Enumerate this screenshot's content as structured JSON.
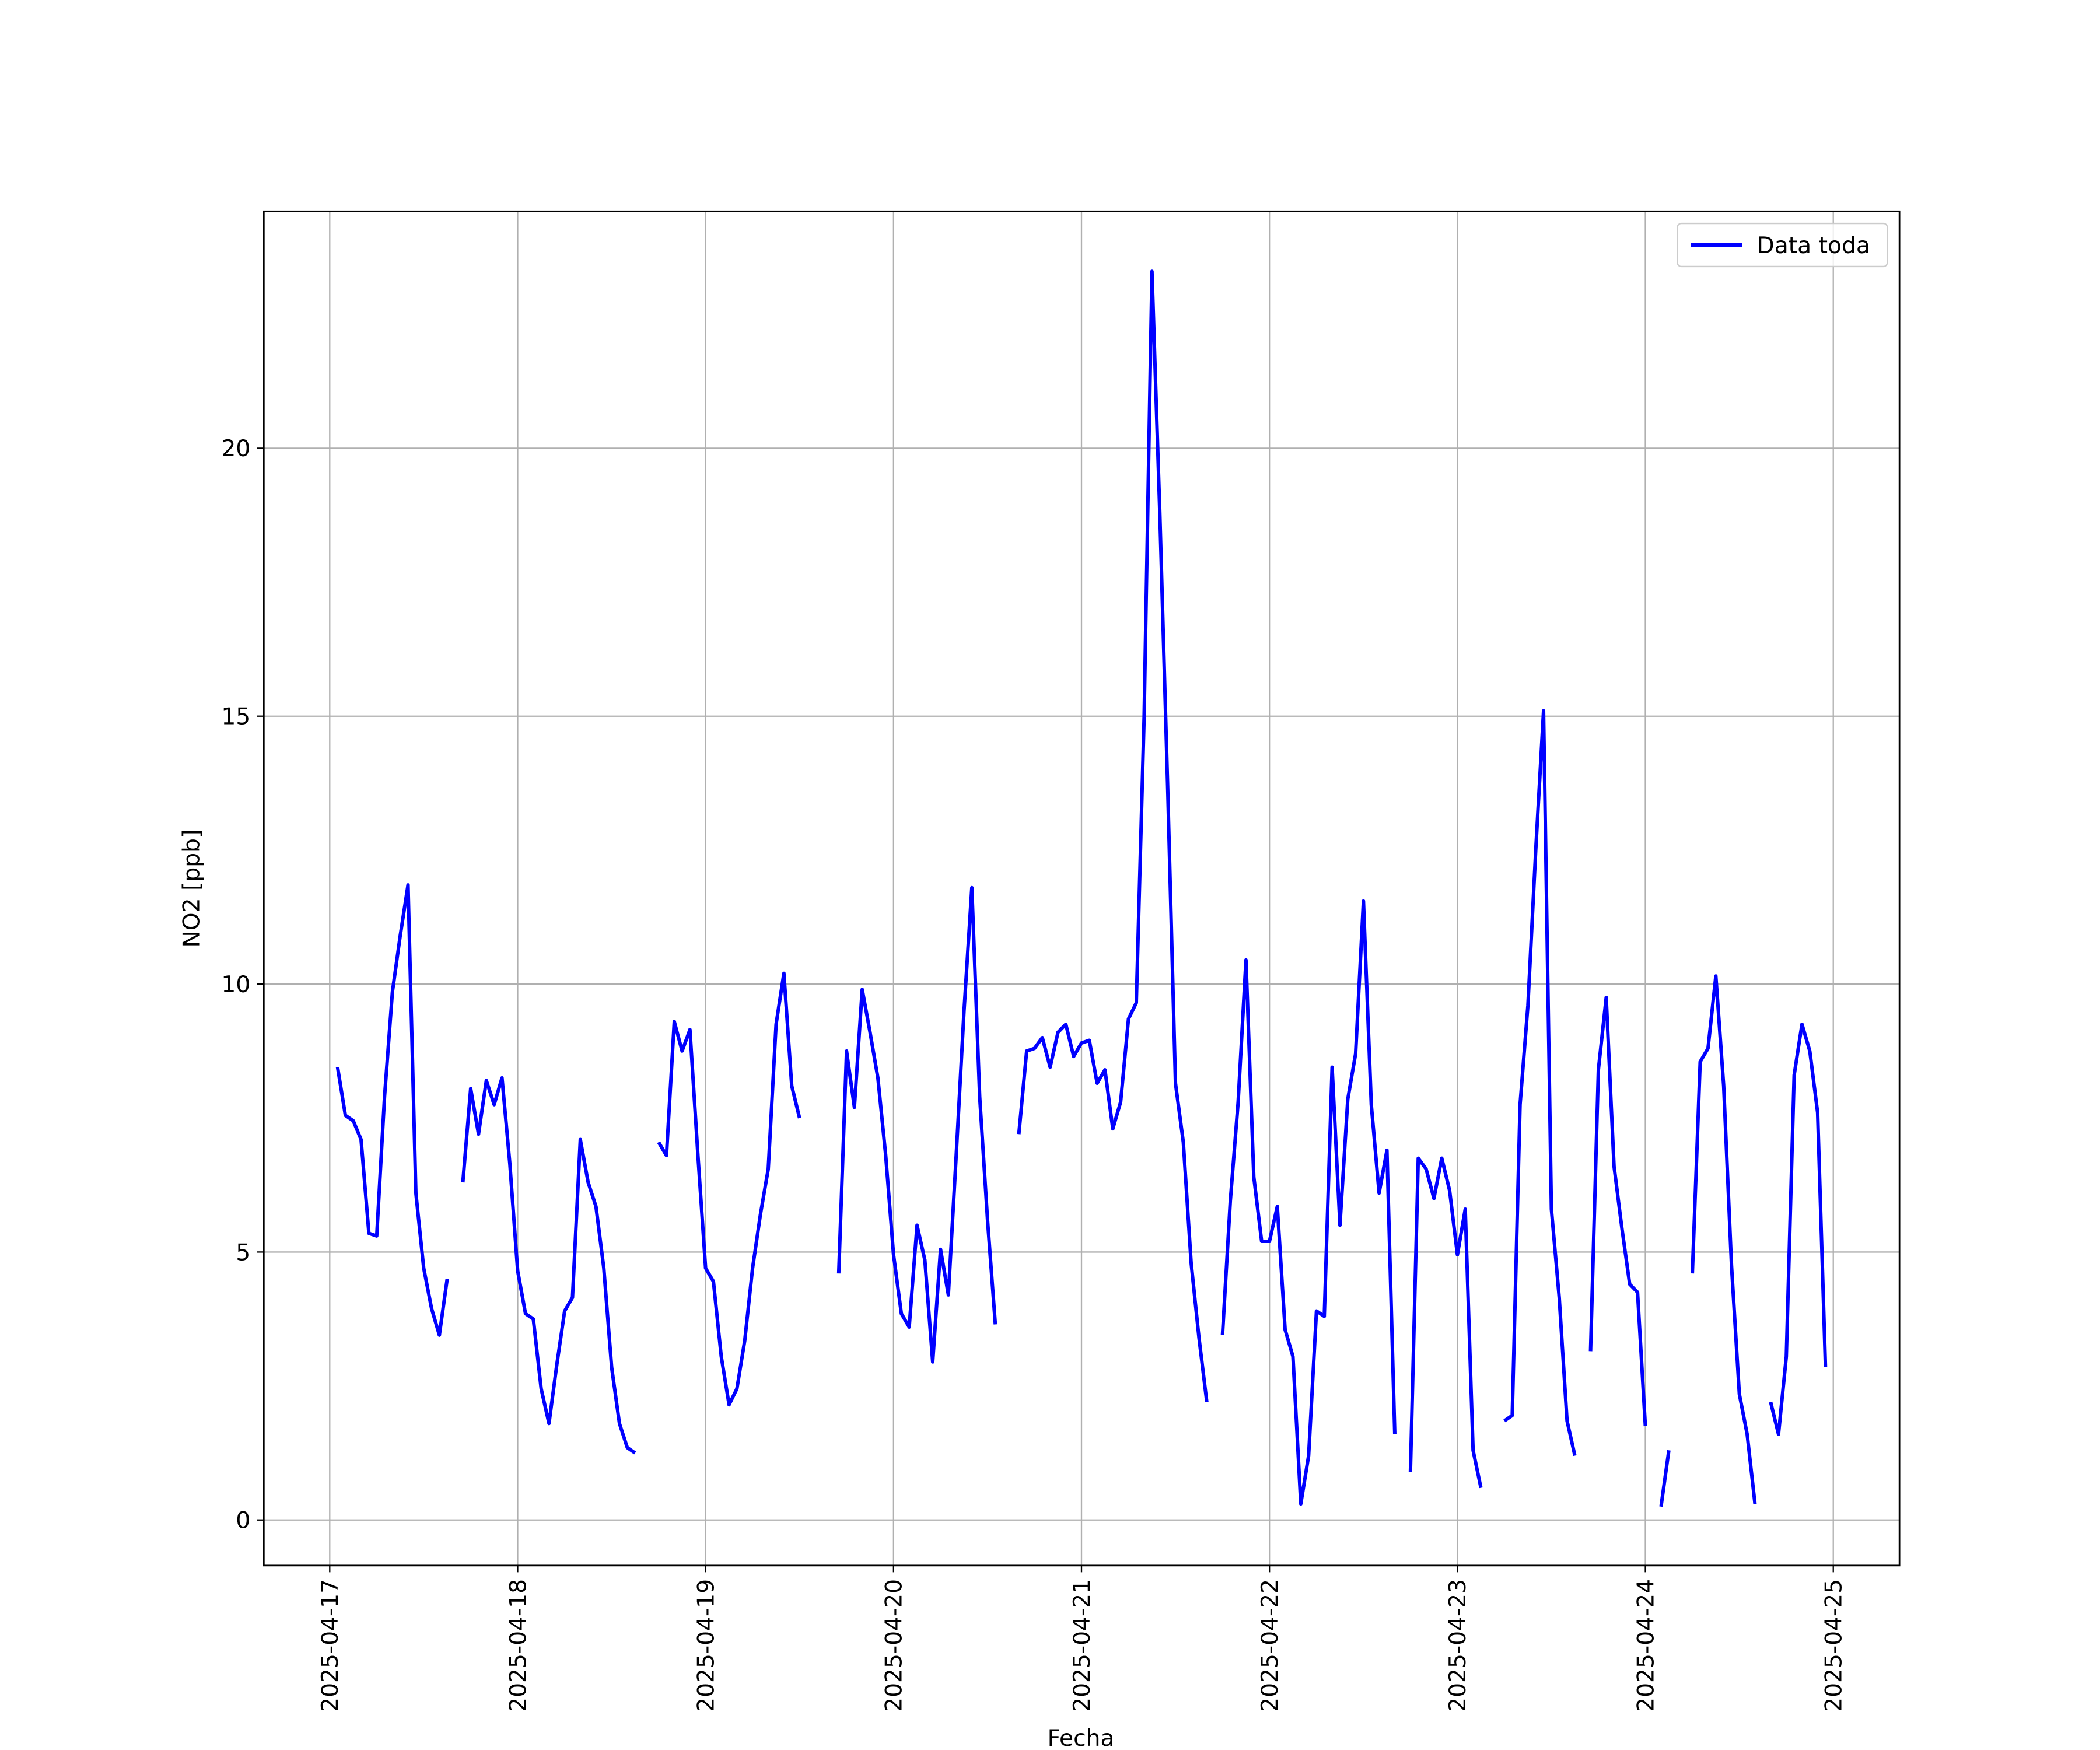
{
  "chart_data": {
    "type": "line",
    "xlabel": "Fecha",
    "ylabel": "NO2 [ppb]",
    "x": [
      "2025-04-17 01:00",
      "2025-04-17 02:00",
      "2025-04-17 03:00",
      "2025-04-17 04:00",
      "2025-04-17 05:00",
      "2025-04-17 06:00",
      "2025-04-17 07:00",
      "2025-04-17 08:00",
      "2025-04-17 09:00",
      "2025-04-17 10:00",
      "2025-04-17 11:00",
      "2025-04-17 12:00",
      "2025-04-17 13:00",
      "2025-04-17 14:00",
      "2025-04-17 15:00",
      "2025-04-17 16:00",
      "2025-04-17 17:00",
      "2025-04-17 18:00",
      "2025-04-17 19:00",
      "2025-04-17 20:00",
      "2025-04-17 21:00",
      "2025-04-17 22:00",
      "2025-04-17 23:00",
      "2025-04-18 00:00",
      "2025-04-18 01:00",
      "2025-04-18 02:00",
      "2025-04-18 03:00",
      "2025-04-18 04:00",
      "2025-04-18 05:00",
      "2025-04-18 06:00",
      "2025-04-18 07:00",
      "2025-04-18 08:00",
      "2025-04-18 09:00",
      "2025-04-18 10:00",
      "2025-04-18 11:00",
      "2025-04-18 12:00",
      "2025-04-18 13:00",
      "2025-04-18 14:00",
      "2025-04-18 15:00",
      "2025-04-18 16:00",
      "2025-04-18 18:00",
      "2025-04-18 19:00",
      "2025-04-18 20:00",
      "2025-04-18 21:00",
      "2025-04-18 22:00",
      "2025-04-18 23:00",
      "2025-04-19 00:00",
      "2025-04-19 01:00",
      "2025-04-19 02:00",
      "2025-04-19 03:00",
      "2025-04-19 04:00",
      "2025-04-19 05:00",
      "2025-04-19 06:00",
      "2025-04-19 07:00",
      "2025-04-19 08:00",
      "2025-04-19 09:00",
      "2025-04-19 10:00",
      "2025-04-19 11:00",
      "2025-04-19 12:00",
      "2025-04-19 13:00",
      "2025-04-19 17:00",
      "2025-04-19 18:00",
      "2025-04-19 19:00",
      "2025-04-19 20:00",
      "2025-04-19 21:00",
      "2025-04-19 22:00",
      "2025-04-19 23:00",
      "2025-04-20 00:00",
      "2025-04-20 01:00",
      "2025-04-20 02:00",
      "2025-04-20 03:00",
      "2025-04-20 04:00",
      "2025-04-20 05:00",
      "2025-04-20 06:00",
      "2025-04-20 07:00",
      "2025-04-20 08:00",
      "2025-04-20 09:00",
      "2025-04-20 10:00",
      "2025-04-20 11:00",
      "2025-04-20 12:00",
      "2025-04-20 13:00",
      "2025-04-20 14:00",
      "2025-04-20 16:00",
      "2025-04-20 17:00",
      "2025-04-20 18:00",
      "2025-04-20 19:00",
      "2025-04-20 20:00",
      "2025-04-20 21:00",
      "2025-04-20 22:00",
      "2025-04-20 23:00",
      "2025-04-21 00:00",
      "2025-04-21 01:00",
      "2025-04-21 02:00",
      "2025-04-21 03:00",
      "2025-04-21 04:00",
      "2025-04-21 05:00",
      "2025-04-21 06:00",
      "2025-04-21 07:00",
      "2025-04-21 08:00",
      "2025-04-21 09:00",
      "2025-04-21 10:00",
      "2025-04-21 11:00",
      "2025-04-21 12:00",
      "2025-04-21 13:00",
      "2025-04-21 14:00",
      "2025-04-21 15:00",
      "2025-04-21 16:00",
      "2025-04-21 17:00",
      "2025-04-21 18:00",
      "2025-04-21 19:00",
      "2025-04-21 20:00",
      "2025-04-21 21:00",
      "2025-04-21 22:00",
      "2025-04-21 23:00",
      "2025-04-22 00:00",
      "2025-04-22 01:00",
      "2025-04-22 02:00",
      "2025-04-22 03:00",
      "2025-04-22 04:00",
      "2025-04-22 05:00",
      "2025-04-22 06:00",
      "2025-04-22 07:00",
      "2025-04-22 08:00",
      "2025-04-22 09:00",
      "2025-04-22 10:00",
      "2025-04-22 11:00",
      "2025-04-22 12:00",
      "2025-04-22 13:00",
      "2025-04-22 14:00",
      "2025-04-22 15:00",
      "2025-04-22 16:00",
      "2025-04-22 17:00",
      "2025-04-22 18:00",
      "2025-04-22 19:00",
      "2025-04-22 20:00",
      "2025-04-22 21:00",
      "2025-04-22 22:00",
      "2025-04-22 23:00",
      "2025-04-23 00:00",
      "2025-04-23 01:00",
      "2025-04-23 02:00",
      "2025-04-23 03:00",
      "2025-04-23 04:00",
      "2025-04-23 06:00",
      "2025-04-23 07:00",
      "2025-04-23 08:00",
      "2025-04-23 09:00",
      "2025-04-23 10:00",
      "2025-04-23 11:00",
      "2025-04-23 12:00",
      "2025-04-23 13:00",
      "2025-04-23 14:00",
      "2025-04-23 15:00",
      "2025-04-23 16:00",
      "2025-04-23 17:00",
      "2025-04-23 18:00",
      "2025-04-23 19:00",
      "2025-04-23 20:00",
      "2025-04-23 21:00",
      "2025-04-23 22:00",
      "2025-04-23 23:00",
      "2025-04-24 00:00",
      "2025-04-24 01:00",
      "2025-04-24 02:00",
      "2025-04-24 03:00",
      "2025-04-24 04:00",
      "2025-04-24 06:00",
      "2025-04-24 07:00",
      "2025-04-24 08:00",
      "2025-04-24 09:00",
      "2025-04-24 10:00",
      "2025-04-24 11:00",
      "2025-04-24 12:00",
      "2025-04-24 13:00",
      "2025-04-24 14:00",
      "2025-04-24 15:00",
      "2025-04-24 16:00",
      "2025-04-24 17:00",
      "2025-04-24 18:00",
      "2025-04-24 19:00",
      "2025-04-24 20:00",
      "2025-04-24 21:00",
      "2025-04-24 22:00",
      "2025-04-24 23:00"
    ],
    "series": [
      {
        "name": "Data toda",
        "color": "#0000ff",
        "values": [
          8.45,
          7.55,
          7.45,
          7.1,
          5.35,
          5.3,
          7.9,
          9.85,
          10.9,
          11.85,
          6.1,
          4.7,
          3.95,
          3.45,
          4.5,
          null,
          6.3,
          8.05,
          7.2,
          8.2,
          7.75,
          8.25,
          6.65,
          4.65,
          3.85,
          3.75,
          2.45,
          1.8,
          2.9,
          3.9,
          4.15,
          7.1,
          6.3,
          5.85,
          4.7,
          2.85,
          1.8,
          1.35,
          1.25,
          null,
          7.05,
          6.8,
          9.3,
          8.75,
          9.15,
          6.85,
          4.7,
          4.45,
          3.05,
          2.15,
          2.45,
          3.35,
          4.7,
          5.7,
          6.55,
          9.25,
          10.2,
          8.1,
          7.5,
          null,
          4.6,
          8.75,
          7.7,
          9.9,
          9.1,
          8.25,
          6.8,
          4.95,
          3.85,
          3.6,
          5.5,
          4.85,
          2.95,
          5.05,
          4.2,
          6.8,
          9.5,
          11.8,
          7.9,
          5.6,
          3.65,
          null,
          7.2,
          8.75,
          8.8,
          9.0,
          8.45,
          9.1,
          9.25,
          8.65,
          8.9,
          8.95,
          8.15,
          8.4,
          7.3,
          7.8,
          9.35,
          9.65,
          15.0,
          23.3,
          18.8,
          13.7,
          8.15,
          7.05,
          4.8,
          3.4,
          2.2,
          null,
          3.45,
          5.95,
          7.8,
          10.45,
          6.4,
          5.2,
          5.2,
          5.85,
          3.55,
          3.05,
          0.3,
          1.2,
          3.9,
          3.8,
          8.45,
          5.5,
          7.85,
          8.7,
          11.55,
          7.75,
          6.1,
          6.9,
          1.6,
          null,
          0.9,
          6.75,
          6.55,
          6.0,
          6.75,
          6.15,
          4.95,
          5.8,
          1.3,
          0.6,
          null,
          1.85,
          1.95,
          7.75,
          9.6,
          12.5,
          15.1,
          5.8,
          4.15,
          1.85,
          1.2,
          null,
          3.15,
          8.4,
          9.75,
          6.6,
          5.45,
          4.4,
          4.25,
          1.75,
          null,
          0.25,
          1.3,
          null,
          4.6,
          8.55,
          8.8,
          10.15,
          8.1,
          4.75,
          2.35,
          1.6,
          0.3,
          null,
          2.2,
          1.6,
          3.05,
          8.3,
          9.25,
          8.75,
          7.6,
          2.85
        ]
      }
    ],
    "xlim": [
      "2025-04-16 15:35",
      "2025-04-25 08:27"
    ],
    "xticks": [
      "2025-04-17",
      "2025-04-18",
      "2025-04-19",
      "2025-04-20",
      "2025-04-21",
      "2025-04-22",
      "2025-04-23",
      "2025-04-24",
      "2025-04-25"
    ],
    "ylim": [
      -0.85,
      24.42
    ],
    "yticks": [
      0,
      5,
      10,
      15,
      20
    ],
    "grid": true,
    "legend": "upper right"
  }
}
